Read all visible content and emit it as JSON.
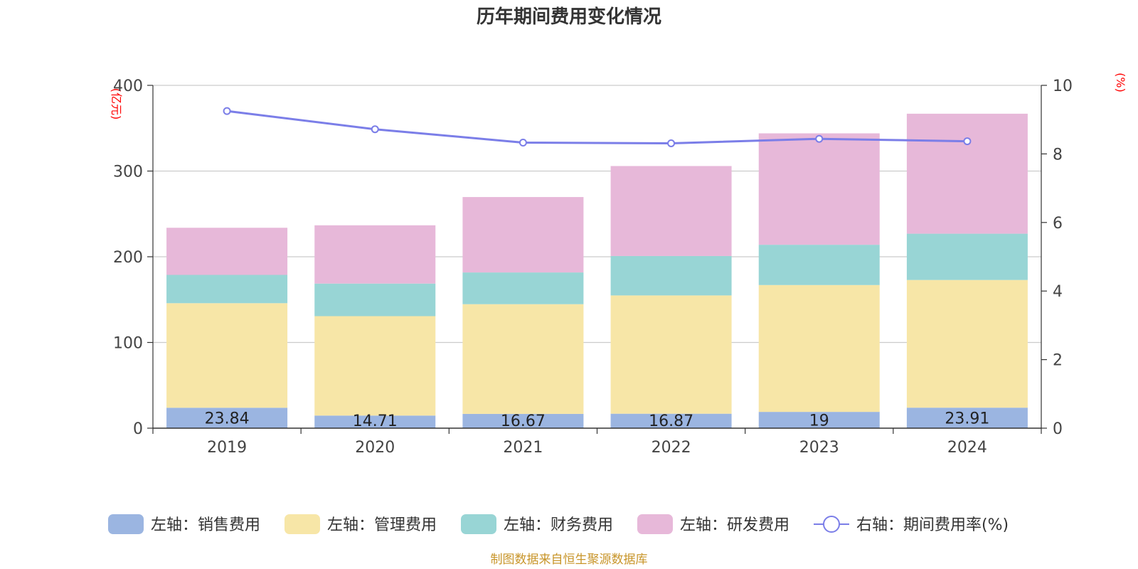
{
  "chart_data": {
    "type": "bar",
    "title": "历年期间费用变化情况",
    "categories": [
      "2019",
      "2020",
      "2021",
      "2022",
      "2023",
      "2024"
    ],
    "left_axis": {
      "unit_label": "(亿元)",
      "ylim": [
        0,
        400
      ],
      "ticks": [
        "0",
        "100",
        "200",
        "300",
        "400"
      ]
    },
    "right_axis": {
      "unit_label": "(%)",
      "ylim": [
        0,
        10
      ],
      "ticks": [
        "0",
        "2",
        "4",
        "6",
        "8",
        "10"
      ]
    },
    "stacked": true,
    "grid": true,
    "legend_position": "bottom",
    "series": [
      {
        "name": "左轴：销售费用",
        "type": "bar",
        "axis": "left",
        "color": "#9bb5e1",
        "values": [
          23.84,
          14.71,
          16.67,
          16.87,
          19,
          23.91
        ],
        "data_labels": [
          "23.84",
          "14.71",
          "16.67",
          "16.87",
          "19",
          "23.91"
        ]
      },
      {
        "name": "左轴：管理费用",
        "type": "bar",
        "axis": "left",
        "color": "#f7e6a7",
        "values": [
          122,
          116,
          128,
          138,
          148,
          149
        ]
      },
      {
        "name": "左轴：财务费用",
        "type": "bar",
        "axis": "left",
        "color": "#98d5d5",
        "values": [
          33,
          38,
          37,
          46,
          47,
          54
        ]
      },
      {
        "name": "左轴：研发费用",
        "type": "bar",
        "axis": "left",
        "color": "#e7b8d9",
        "values": [
          55,
          68,
          88,
          105,
          130,
          140
        ]
      },
      {
        "name": "右轴：期间费用率(%)",
        "type": "line",
        "axis": "right",
        "color": "#7b7ee8",
        "values": [
          9.25,
          8.72,
          8.33,
          8.31,
          8.44,
          8.37
        ]
      }
    ]
  },
  "source_note": "制图数据来自恒生聚源数据库"
}
